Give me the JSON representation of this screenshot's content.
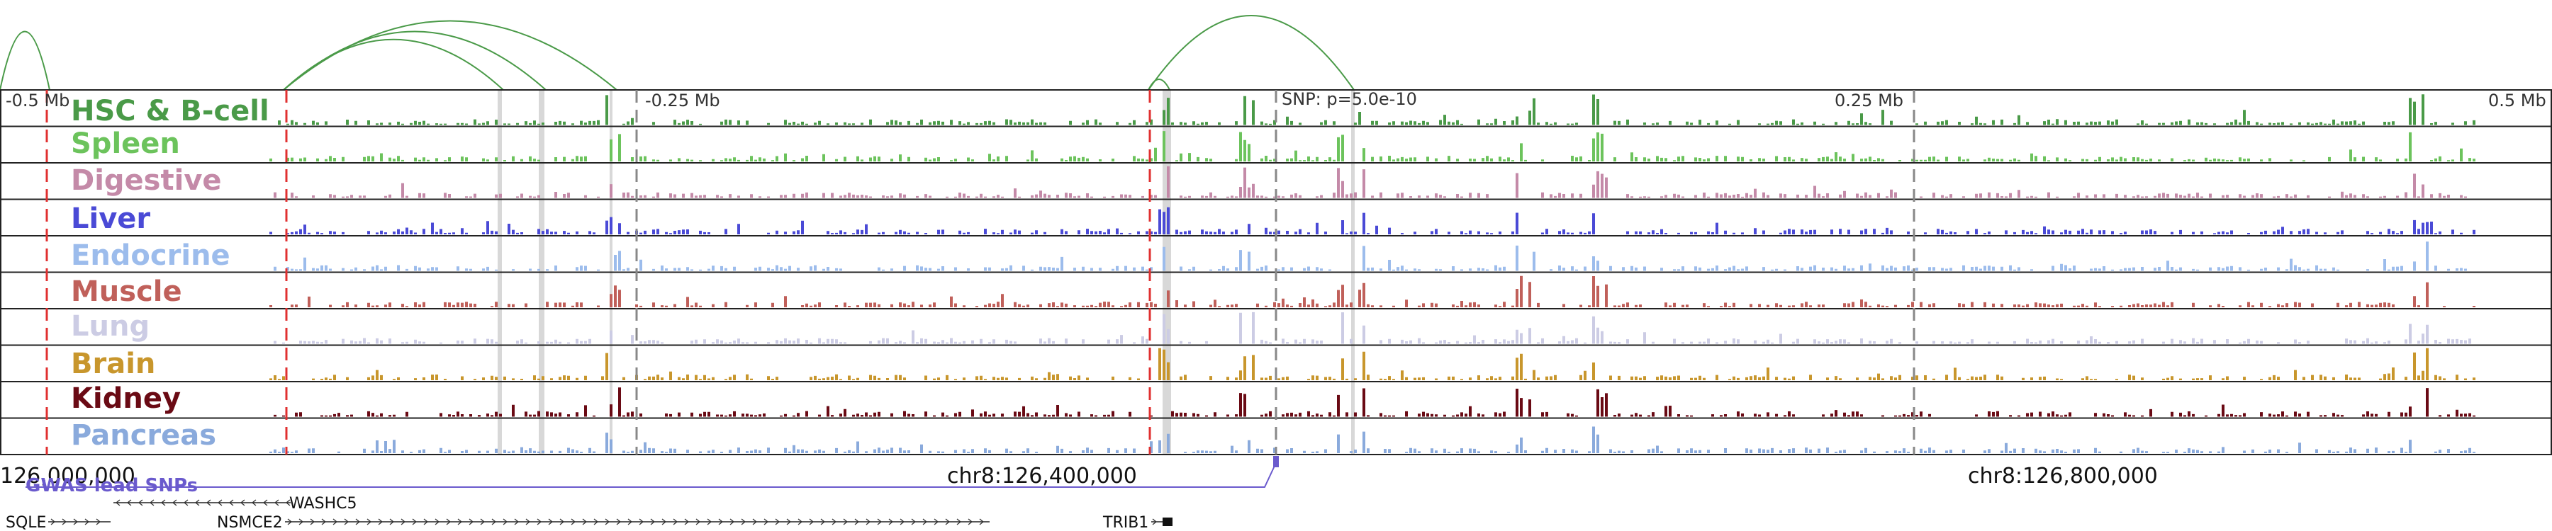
{
  "scale_labels": [
    "-0.5 Mb",
    "-0.25 Mb",
    "SNP: p=5.0e-10",
    "0.25 Mb",
    "0.5 Mb"
  ],
  "tracks": [
    {
      "name": "HSC & B-cell",
      "color": "#4a9a48"
    },
    {
      "name": "Spleen",
      "color": "#6cc35c"
    },
    {
      "name": "Digestive",
      "color": "#c48aa8"
    },
    {
      "name": "Liver",
      "color": "#4a4ad6"
    },
    {
      "name": "Endocrine",
      "color": "#9cbcec"
    },
    {
      "name": "Muscle",
      "color": "#c0605a"
    },
    {
      "name": "Lung",
      "color": "#cccce4"
    },
    {
      "name": "Brain",
      "color": "#c8962c"
    },
    {
      "name": "Kidney",
      "color": "#6a0a14"
    },
    {
      "name": "Pancreas",
      "color": "#8aaadc"
    }
  ],
  "coordinates": [
    "126,000,000",
    "chr8:126,400,000",
    "chr8:126,800,000"
  ],
  "gwas_label": "GWAS lead SNPs",
  "gwas_color": "#6a5acd",
  "genes": [
    {
      "name": "WASHC5",
      "strand": "-"
    },
    {
      "name": "SQLE",
      "strand": "+"
    },
    {
      "name": "NSMCE2",
      "strand": "+"
    },
    {
      "name": "TRIB1",
      "strand": "+"
    }
  ],
  "colors": {
    "loop": "#4a9a48",
    "red_marker": "#e03030",
    "gray_marker": "#888888",
    "highlight": "#d8d8d8"
  }
}
